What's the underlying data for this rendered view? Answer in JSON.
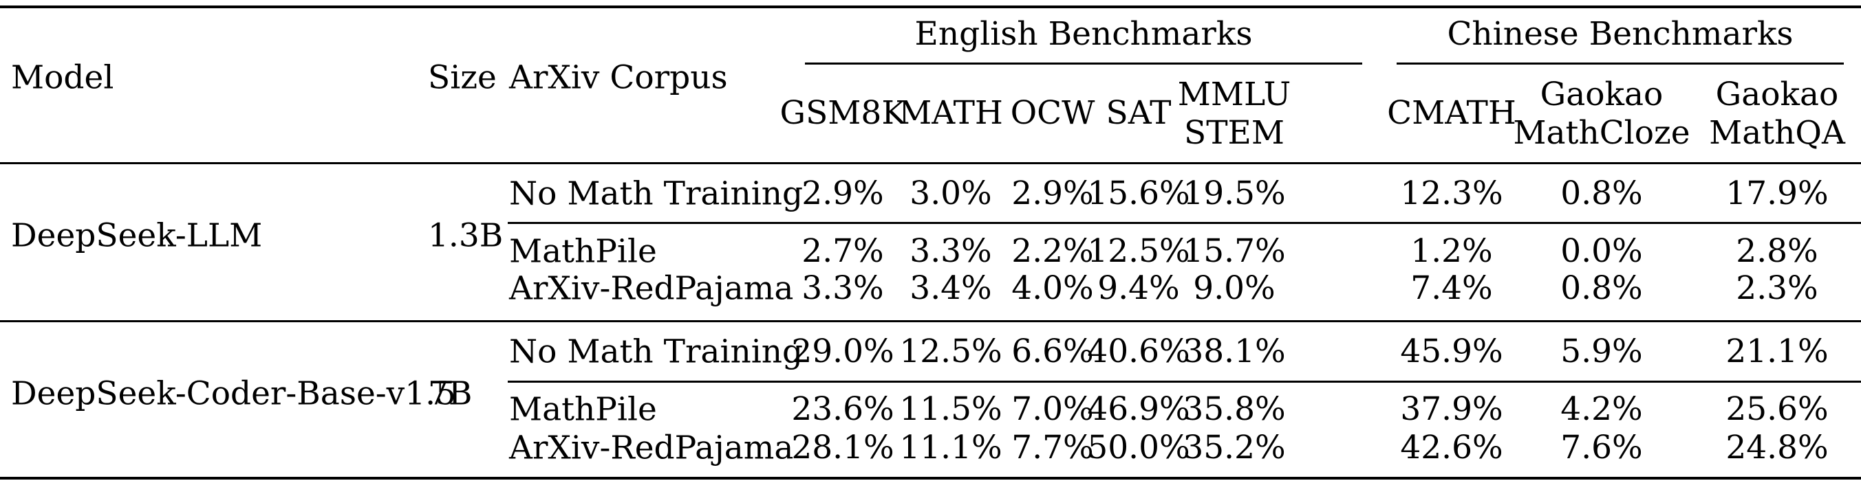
{
  "table": {
    "headers": {
      "model": "Model",
      "size": "Size",
      "corpus": "ArXiv Corpus",
      "group_en": "English Benchmarks",
      "group_zh": "Chinese Benchmarks",
      "columns": [
        {
          "line1": "GSM8K",
          "line2": ""
        },
        {
          "line1": "MATH",
          "line2": ""
        },
        {
          "line1": "OCW",
          "line2": ""
        },
        {
          "line1": "SAT",
          "line2": ""
        },
        {
          "line1": "MMLU",
          "line2": "STEM"
        },
        {
          "line1": "CMATH",
          "line2": ""
        },
        {
          "line1": "Gaokao",
          "line2": "MathCloze"
        },
        {
          "line1": "Gaokao",
          "line2": "MathQA"
        }
      ]
    },
    "groups": [
      {
        "model": "DeepSeek-LLM",
        "size": "1.3B",
        "rows": [
          {
            "corpus": "No Math Training",
            "values": [
              "2.9%",
              "3.0%",
              "2.9%",
              "15.6%",
              "19.5%",
              "12.3%",
              "0.8%",
              "17.9%"
            ]
          },
          {
            "corpus": "MathPile",
            "values": [
              "2.7%",
              "3.3%",
              "2.2%",
              "12.5%",
              "15.7%",
              "1.2%",
              "0.0%",
              "2.8%"
            ]
          },
          {
            "corpus": "ArXiv-RedPajama",
            "values": [
              "3.3%",
              "3.4%",
              "4.0%",
              "9.4%",
              "9.0%",
              "7.4%",
              "0.8%",
              "2.3%"
            ]
          }
        ]
      },
      {
        "model": "DeepSeek-Coder-Base-v1.5",
        "size": "7B",
        "rows": [
          {
            "corpus": "No Math Training",
            "values": [
              "29.0%",
              "12.5%",
              "6.6%",
              "40.6%",
              "38.1%",
              "45.9%",
              "5.9%",
              "21.1%"
            ]
          },
          {
            "corpus": "MathPile",
            "values": [
              "23.6%",
              "11.5%",
              "7.0%",
              "46.9%",
              "35.8%",
              "37.9%",
              "4.2%",
              "25.6%"
            ]
          },
          {
            "corpus": "ArXiv-RedPajama",
            "values": [
              "28.1%",
              "11.1%",
              "7.7%",
              "50.0%",
              "35.2%",
              "42.6%",
              "7.6%",
              "24.8%"
            ]
          }
        ]
      }
    ]
  }
}
